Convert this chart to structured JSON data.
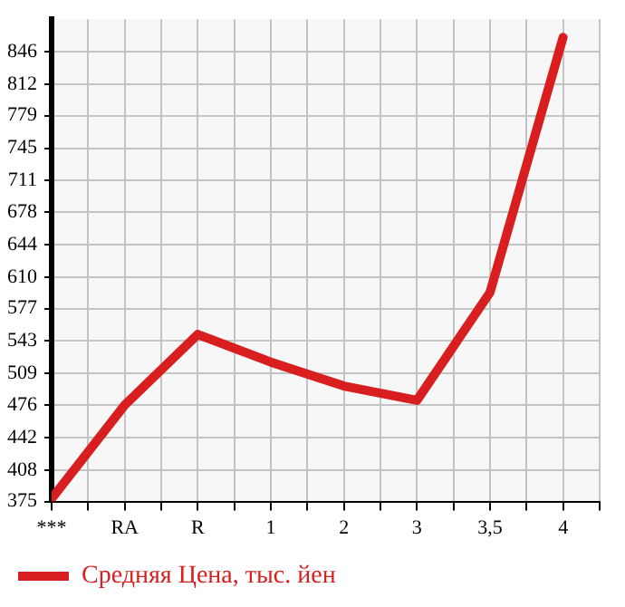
{
  "chart_data": {
    "type": "line",
    "categories": [
      "***",
      "RA",
      "R",
      "1",
      "2",
      "3",
      "3,5",
      "4"
    ],
    "series": [
      {
        "name": "Средняя Цена, тыс. йен",
        "color": "#d81e1e",
        "values": [
          378,
          476,
          550,
          521,
          496,
          481,
          594,
          861
        ]
      }
    ],
    "ylim": [
      375,
      880
    ],
    "yticks": [
      375,
      408,
      442,
      476,
      509,
      543,
      577,
      610,
      644,
      678,
      711,
      745,
      779,
      812,
      846
    ],
    "grid": true,
    "legend": "bottom",
    "marker": "none",
    "line_style": "solid"
  }
}
